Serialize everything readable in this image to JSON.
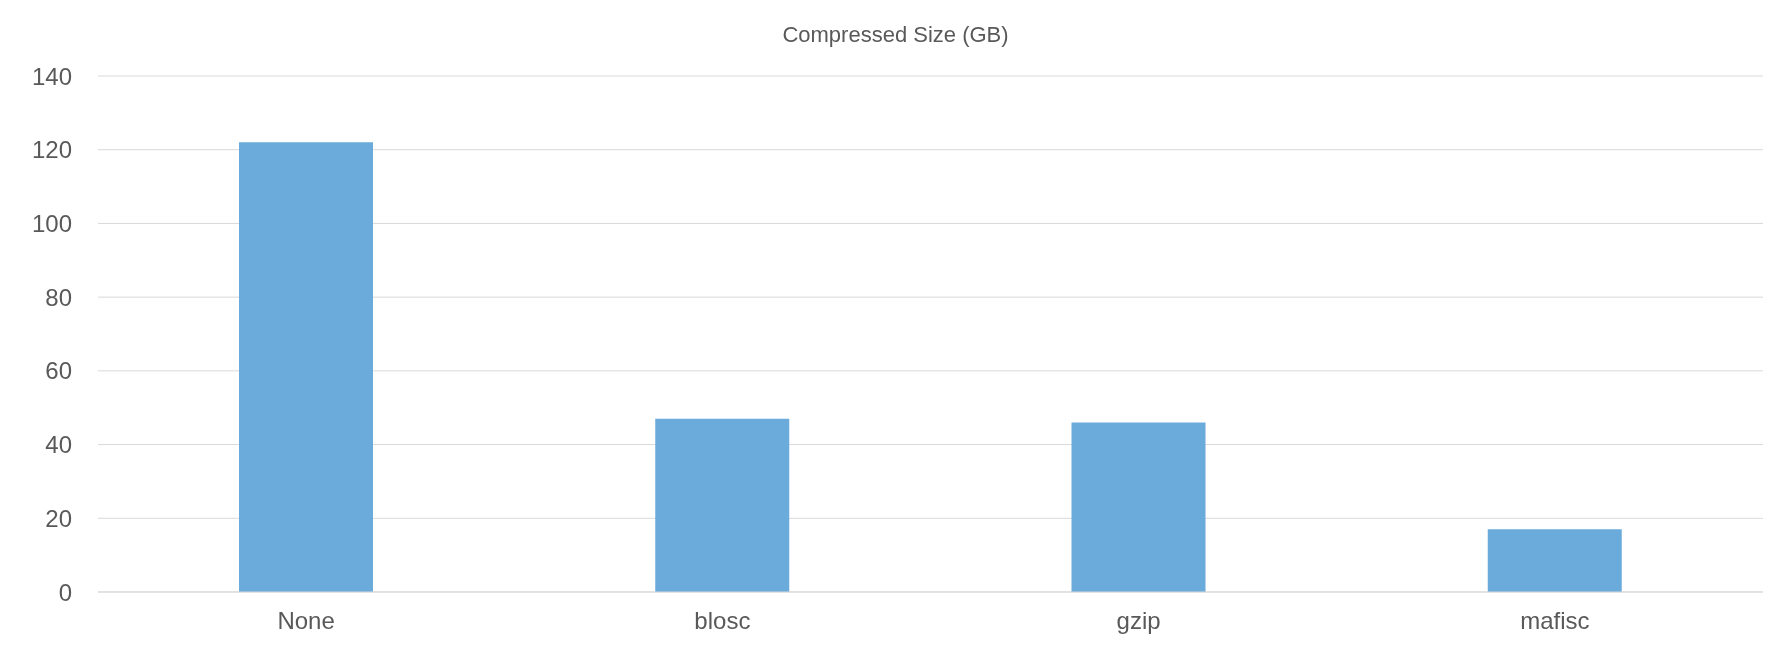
{
  "chart_data": {
    "type": "bar",
    "title": "Compressed Size (GB)",
    "categories": [
      "None",
      "blosc",
      "gzip",
      "mafisc"
    ],
    "values": [
      122,
      47,
      46,
      17
    ],
    "color": "#6aabdb",
    "ylim": [
      0,
      140
    ],
    "yticks": [
      0,
      20,
      40,
      60,
      80,
      100,
      120,
      140
    ],
    "grid": "y"
  }
}
